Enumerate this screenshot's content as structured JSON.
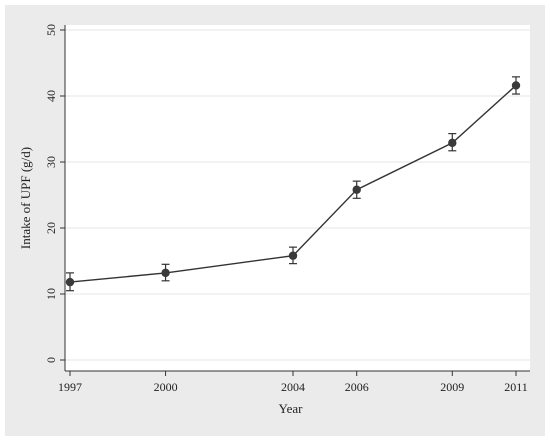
{
  "chart_data": {
    "type": "line",
    "xlabel": "Year",
    "ylabel": "Intake of UPF (g/d)",
    "xlim": [
      1997,
      2011
    ],
    "ylim": [
      0,
      50
    ],
    "x_ticks": [
      1997,
      2000,
      2004,
      2006,
      2009,
      2011
    ],
    "y_ticks": [
      0,
      10,
      20,
      30,
      40,
      50
    ],
    "grid": "horizontal",
    "legend": "none",
    "series": [
      {
        "points": [
          {
            "x": 1997,
            "y": 11.8,
            "lo": 10.5,
            "hi": 13.2
          },
          {
            "x": 2000,
            "y": 13.2,
            "lo": 12.0,
            "hi": 14.5
          },
          {
            "x": 2004,
            "y": 15.8,
            "lo": 14.6,
            "hi": 17.1
          },
          {
            "x": 2006,
            "y": 25.8,
            "lo": 24.5,
            "hi": 27.1
          },
          {
            "x": 2009,
            "y": 32.9,
            "lo": 31.7,
            "hi": 34.3
          },
          {
            "x": 2011,
            "y": 41.6,
            "lo": 40.3,
            "hi": 42.9
          }
        ]
      }
    ],
    "colors": {
      "background": "#ebebeb",
      "plot_area": "#ffffff",
      "line": "#333333",
      "marker": "#3a3a3a",
      "grid": "#e6e6e6",
      "axis": "#333333"
    }
  }
}
